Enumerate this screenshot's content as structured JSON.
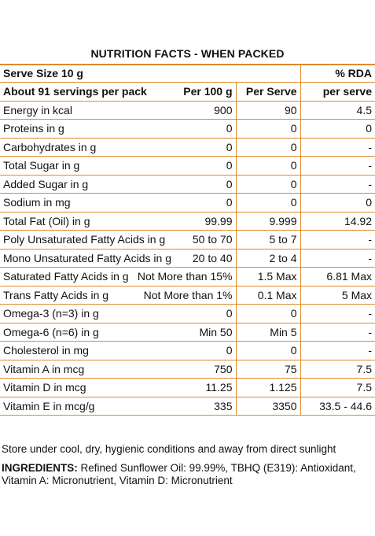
{
  "title": "NUTRITION FACTS - WHEN PACKED",
  "serve_size": "Serve Size 10 g",
  "rda_header": "% RDA",
  "servings_label": "About 91 servings per pack",
  "col_per100": "Per 100 g",
  "col_perserve": "Per Serve",
  "col_rda": "per serve",
  "rows": [
    {
      "name": "Energy in kcal",
      "per100": "900",
      "serve": "90",
      "rda": "4.5"
    },
    {
      "name": "Proteins in g",
      "per100": "0",
      "serve": "0",
      "rda": "0"
    },
    {
      "name": "Carbohydrates in g",
      "per100": "0",
      "serve": "0",
      "rda": "-"
    },
    {
      "name": "Total Sugar in g",
      "per100": "0",
      "serve": "0",
      "rda": "-"
    },
    {
      "name": "Added Sugar in g",
      "per100": "0",
      "serve": "0",
      "rda": "-"
    },
    {
      "name": "Sodium in mg",
      "per100": "0",
      "serve": "0",
      "rda": "0"
    },
    {
      "name": "Total Fat (Oil) in g",
      "per100": "99.99",
      "serve": "9.999",
      "rda": "14.92"
    },
    {
      "name": "Poly Unsaturated Fatty Acids in g",
      "per100": "50 to 70",
      "serve": "5 to 7",
      "rda": "-"
    },
    {
      "name": "Mono Unsaturated Fatty Acids in g",
      "per100": "20 to 40",
      "serve": "2 to 4",
      "rda": "-"
    },
    {
      "name": "Saturated Fatty Acids in g",
      "per100": "Not More than 15%",
      "serve": "1.5 Max",
      "rda": "6.81 Max"
    },
    {
      "name": "Trans Fatty Acids in g",
      "per100": "Not More than 1%",
      "serve": "0.1 Max",
      "rda": "5 Max"
    },
    {
      "name": "Omega-3 (n=3) in g",
      "per100": "0",
      "serve": "0",
      "rda": "-"
    },
    {
      "name": "Omega-6 (n=6) in g",
      "per100": "Min 50",
      "serve": "Min 5",
      "rda": "-"
    },
    {
      "name": "Cholesterol in mg",
      "per100": "0",
      "serve": "0",
      "rda": "-"
    },
    {
      "name": "Vitamin A in mcg",
      "per100": "750",
      "serve": "75",
      "rda": "7.5"
    },
    {
      "name": "Vitamin D in mcg",
      "per100": "11.25",
      "serve": "1.125",
      "rda": "7.5"
    },
    {
      "name": "Vitamin E in mcg/g",
      "per100": "335",
      "serve": "3350",
      "rda": "33.5 - 44.6"
    }
  ],
  "storage": "Store under cool, dry, hygienic conditions and away from direct sunlight",
  "ingredients_label": "INGREDIENTS:",
  "ingredients_text": "Refined Sunflower Oil: 99.99%, TBHQ (E319): Antioxidant,",
  "ingredients_text2": "Vitamin A: Micronutrient, Vitamin D: Micronutrient",
  "accent_color": "#e08a2a"
}
